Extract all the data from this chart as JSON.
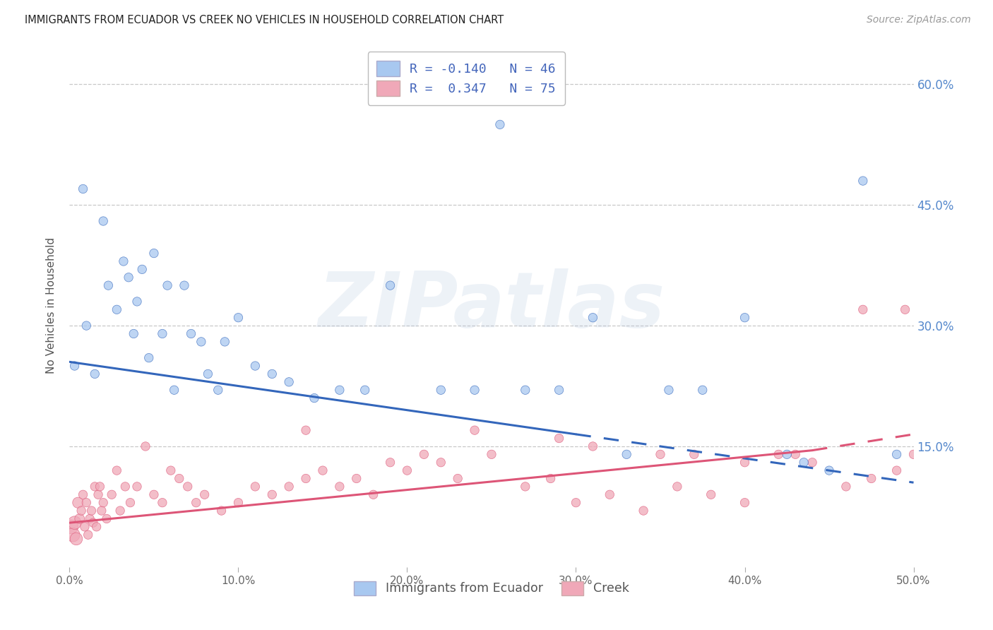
{
  "title": "IMMIGRANTS FROM ECUADOR VS CREEK NO VEHICLES IN HOUSEHOLD CORRELATION CHART",
  "source": "Source: ZipAtlas.com",
  "ylabel": "No Vehicles in Household",
  "xlim": [
    0.0,
    50.0
  ],
  "ylim": [
    0.0,
    65.0
  ],
  "xticks": [
    0.0,
    10.0,
    20.0,
    30.0,
    40.0,
    50.0
  ],
  "yticks_right": [
    15.0,
    30.0,
    45.0,
    60.0
  ],
  "background_color": "#ffffff",
  "grid_color": "#c8c8c8",
  "blue_color": "#a8c8f0",
  "pink_color": "#f0a8b8",
  "blue_line_color": "#3366bb",
  "pink_line_color": "#dd5577",
  "blue_label": "Immigrants from Ecuador",
  "pink_label": "Creek",
  "blue_R": "-0.140",
  "blue_N": "46",
  "pink_R": " 0.347",
  "pink_N": "75",
  "watermark": "ZIPatlas",
  "blue_scatter_x": [
    0.3,
    0.8,
    1.0,
    1.5,
    2.0,
    2.3,
    2.8,
    3.2,
    3.5,
    3.8,
    4.0,
    4.3,
    4.7,
    5.0,
    5.5,
    5.8,
    6.2,
    6.8,
    7.2,
    7.8,
    8.2,
    8.8,
    9.2,
    10.0,
    11.0,
    12.0,
    13.0,
    14.5,
    16.0,
    17.5,
    19.0,
    22.0,
    24.0,
    25.5,
    27.0,
    29.0,
    31.0,
    33.0,
    35.5,
    37.5,
    40.0,
    42.5,
    43.5,
    45.0,
    47.0,
    49.0
  ],
  "blue_scatter_y": [
    25.0,
    47.0,
    30.0,
    24.0,
    43.0,
    35.0,
    32.0,
    38.0,
    36.0,
    29.0,
    33.0,
    37.0,
    26.0,
    39.0,
    29.0,
    35.0,
    22.0,
    35.0,
    29.0,
    28.0,
    24.0,
    22.0,
    28.0,
    31.0,
    25.0,
    24.0,
    23.0,
    21.0,
    22.0,
    22.0,
    35.0,
    22.0,
    22.0,
    55.0,
    22.0,
    22.0,
    31.0,
    14.0,
    22.0,
    22.0,
    31.0,
    14.0,
    13.0,
    12.0,
    48.0,
    14.0
  ],
  "blue_scatter_sizes": [
    80,
    80,
    80,
    80,
    80,
    80,
    80,
    80,
    80,
    80,
    80,
    80,
    80,
    80,
    80,
    80,
    80,
    80,
    80,
    80,
    80,
    80,
    80,
    80,
    80,
    80,
    80,
    80,
    80,
    80,
    80,
    80,
    80,
    80,
    80,
    80,
    80,
    80,
    80,
    80,
    80,
    80,
    80,
    80,
    80,
    80
  ],
  "pink_scatter_x": [
    0.1,
    0.2,
    0.3,
    0.4,
    0.5,
    0.6,
    0.7,
    0.8,
    0.9,
    1.0,
    1.1,
    1.2,
    1.3,
    1.4,
    1.5,
    1.6,
    1.7,
    1.8,
    1.9,
    2.0,
    2.2,
    2.5,
    2.8,
    3.0,
    3.3,
    3.6,
    4.0,
    4.5,
    5.0,
    5.5,
    6.0,
    6.5,
    7.0,
    7.5,
    8.0,
    9.0,
    10.0,
    11.0,
    12.0,
    13.0,
    14.0,
    15.0,
    16.0,
    17.0,
    18.0,
    19.0,
    20.0,
    21.0,
    22.0,
    23.0,
    25.0,
    27.0,
    28.5,
    30.0,
    32.0,
    34.0,
    36.0,
    38.0,
    40.0,
    42.0,
    44.0,
    46.0,
    47.5,
    49.0,
    50.0,
    24.0,
    29.0,
    31.0,
    35.0,
    37.0,
    40.0,
    43.0,
    47.0,
    49.5,
    14.0
  ],
  "pink_scatter_y": [
    5.0,
    4.0,
    5.5,
    3.5,
    8.0,
    6.0,
    7.0,
    9.0,
    5.0,
    8.0,
    4.0,
    6.0,
    7.0,
    5.5,
    10.0,
    5.0,
    9.0,
    10.0,
    7.0,
    8.0,
    6.0,
    9.0,
    12.0,
    7.0,
    10.0,
    8.0,
    10.0,
    15.0,
    9.0,
    8.0,
    12.0,
    11.0,
    10.0,
    8.0,
    9.0,
    7.0,
    8.0,
    10.0,
    9.0,
    10.0,
    11.0,
    12.0,
    10.0,
    11.0,
    9.0,
    13.0,
    12.0,
    14.0,
    13.0,
    11.0,
    14.0,
    10.0,
    11.0,
    8.0,
    9.0,
    7.0,
    10.0,
    9.0,
    8.0,
    14.0,
    13.0,
    10.0,
    11.0,
    12.0,
    14.0,
    17.0,
    16.0,
    15.0,
    14.0,
    14.0,
    13.0,
    14.0,
    32.0,
    32.0,
    17.0
  ],
  "pink_scatter_sizes": [
    200,
    200,
    180,
    160,
    120,
    100,
    80,
    80,
    80,
    80,
    80,
    80,
    80,
    80,
    80,
    80,
    80,
    80,
    80,
    80,
    80,
    80,
    80,
    80,
    80,
    80,
    80,
    80,
    80,
    80,
    80,
    80,
    80,
    80,
    80,
    80,
    80,
    80,
    80,
    80,
    80,
    80,
    80,
    80,
    80,
    80,
    80,
    80,
    80,
    80,
    80,
    80,
    80,
    80,
    80,
    80,
    80,
    80,
    80,
    80,
    80,
    80,
    80,
    80,
    80,
    80,
    80,
    80,
    80,
    80,
    80,
    80,
    80,
    80,
    80
  ],
  "blue_line_x_solid_end": 30.0,
  "pink_line_x_solid_end": 44.0,
  "blue_line_y_start": 25.5,
  "blue_line_y_end_solid": 16.5,
  "blue_line_y_end_dash": 10.5,
  "pink_line_y_start": 5.5,
  "pink_line_y_end_solid": 14.5,
  "pink_line_y_end_dash": 16.5
}
